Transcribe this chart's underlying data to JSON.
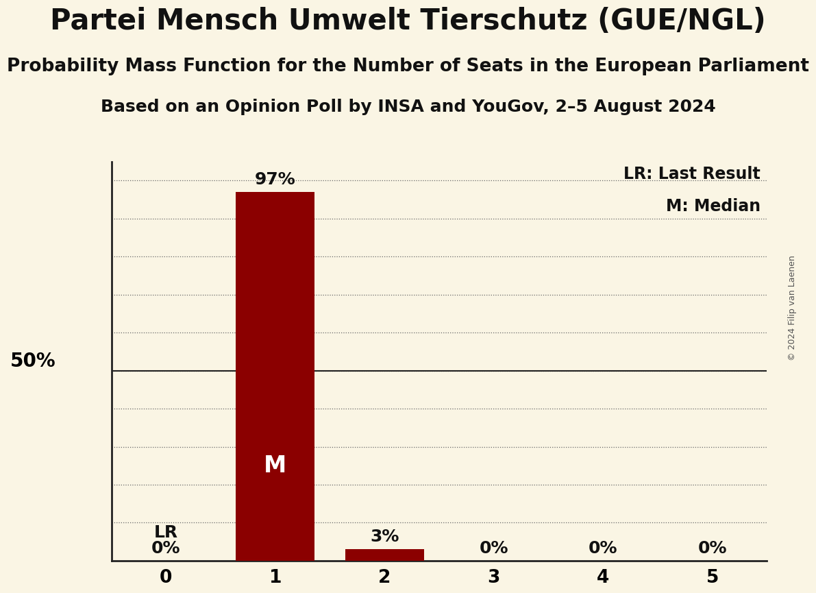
{
  "title": "Partei Mensch Umwelt Tierschutz (GUE/NGL)",
  "subtitle": "Probability Mass Function for the Number of Seats in the European Parliament",
  "subsubtitle": "Based on an Opinion Poll by INSA and YouGov, 2–5 August 2024",
  "copyright": "© 2024 Filip van Laenen",
  "categories": [
    0,
    1,
    2,
    3,
    4,
    5
  ],
  "values": [
    0.0,
    0.97,
    0.03,
    0.0,
    0.0,
    0.0
  ],
  "bar_color": "#8B0000",
  "background_color": "#FAF5E4",
  "bar_labels": [
    "0%",
    "97%",
    "3%",
    "0%",
    "0%",
    "0%"
  ],
  "median_bar": 1,
  "lr_bar": 0,
  "ylim": [
    0,
    1.05
  ],
  "yticks": [
    0.0,
    0.1,
    0.2,
    0.3,
    0.4,
    0.5,
    0.6,
    0.7,
    0.8,
    0.9,
    1.0
  ],
  "ylabel_50": "50%",
  "legend_lr": "LR: Last Result",
  "legend_m": "M: Median",
  "title_fontsize": 30,
  "subtitle_fontsize": 19,
  "subsubtitle_fontsize": 18,
  "bar_label_fontsize": 18,
  "tick_fontsize": 19,
  "median_label_fontsize": 24,
  "lr_label_fontsize": 18,
  "ylabel_fontsize": 20,
  "legend_fontsize": 17,
  "copyright_fontsize": 9,
  "bar_width": 0.72,
  "xlim": [
    -0.5,
    5.5
  ]
}
